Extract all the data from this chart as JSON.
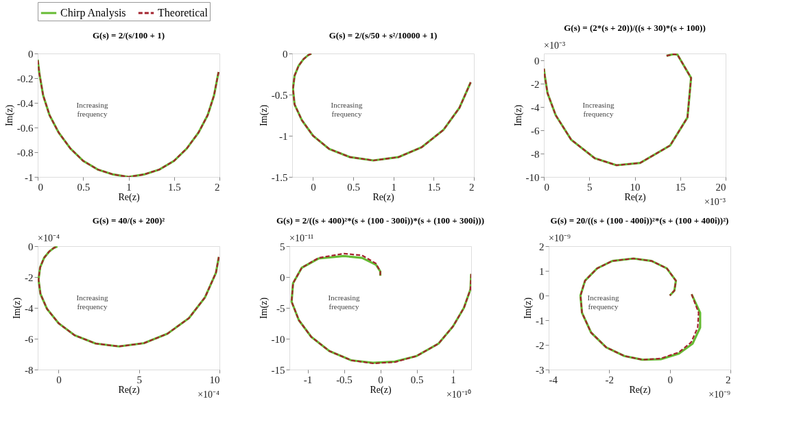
{
  "chart_data": [
    {
      "type": "line",
      "title": "G(s) = 2/(s/100 + 1)",
      "xlabel": "Re(z)",
      "ylabel": "Im(z)",
      "xlim": [
        0,
        2
      ],
      "ylim": [
        -1,
        0
      ],
      "xticks": [
        0,
        0.5,
        1,
        1.5,
        2
      ],
      "yticks": [
        0,
        -0.2,
        -0.4,
        -0.6,
        -0.8,
        -1
      ],
      "grid": false,
      "legend": false,
      "annotations": [
        "Increasing frequency"
      ],
      "series": [
        {
          "color": "#66bb33",
          "line_style": "solid",
          "x": [
            1.99,
            1.94,
            1.87,
            1.77,
            1.64,
            1.5,
            1.34,
            1.17,
            1,
            0.83,
            0.66,
            0.5,
            0.36,
            0.23,
            0.13,
            0.06,
            0.02,
            0.0
          ],
          "values": [
            -0.15,
            -0.34,
            -0.5,
            -0.64,
            -0.77,
            -0.87,
            -0.94,
            -0.98,
            -1,
            -0.98,
            -0.94,
            -0.87,
            -0.77,
            -0.64,
            -0.5,
            -0.34,
            -0.17,
            -0.05
          ]
        },
        {
          "color": "#a3232f",
          "line_style": "dashed",
          "x": [
            1.99,
            1.94,
            1.87,
            1.77,
            1.64,
            1.5,
            1.34,
            1.17,
            1,
            0.83,
            0.66,
            0.5,
            0.36,
            0.23,
            0.13,
            0.06,
            0.02,
            0.0
          ],
          "values": [
            -0.15,
            -0.34,
            -0.5,
            -0.64,
            -0.77,
            -0.87,
            -0.94,
            -0.98,
            -1,
            -0.98,
            -0.94,
            -0.87,
            -0.77,
            -0.64,
            -0.5,
            -0.34,
            -0.17,
            -0.05
          ]
        }
      ]
    },
    {
      "type": "line",
      "title": "G(s) = 2/(s/50 + s²/10000 + 1)",
      "xlabel": "Re(z)",
      "ylabel": "Im(z)",
      "xlim": [
        -0.26,
        2
      ],
      "ylim": [
        -1.5,
        0
      ],
      "xticks": [
        0,
        0.5,
        1,
        1.5,
        2
      ],
      "yticks": [
        0,
        -0.5,
        -1,
        -1.5
      ],
      "grid": false,
      "legend": "top",
      "annotations": [
        "Increasing frequency"
      ],
      "series": [
        {
          "name": "Chirp Analysis",
          "color": "#66bb33",
          "line_style": "solid",
          "x": [
            1.96,
            1.82,
            1.62,
            1.35,
            1.06,
            0.75,
            0.46,
            0.2,
            0,
            -0.14,
            -0.23,
            -0.25,
            -0.23,
            -0.18,
            -0.12,
            -0.06,
            -0.02
          ],
          "values": [
            -0.35,
            -0.66,
            -0.93,
            -1.14,
            -1.26,
            -1.3,
            -1.26,
            -1.16,
            -1,
            -0.81,
            -0.62,
            -0.43,
            -0.27,
            -0.15,
            -0.07,
            -0.02,
            0
          ]
        },
        {
          "name": "Theoretical",
          "color": "#a3232f",
          "line_style": "dashed",
          "x": [
            1.96,
            1.82,
            1.62,
            1.35,
            1.06,
            0.75,
            0.46,
            0.2,
            0,
            -0.14,
            -0.23,
            -0.25,
            -0.23,
            -0.18,
            -0.12,
            -0.06,
            -0.02
          ],
          "values": [
            -0.35,
            -0.66,
            -0.93,
            -1.14,
            -1.26,
            -1.3,
            -1.26,
            -1.16,
            -1,
            -0.81,
            -0.62,
            -0.43,
            -0.27,
            -0.15,
            -0.07,
            -0.02,
            0
          ]
        }
      ]
    },
    {
      "type": "line",
      "title": "G(s) = (2*(s + 20))/((s + 30)*(s + 100))",
      "xlabel": "Re(z)",
      "ylabel": "Im(z)",
      "xlim": [
        0,
        20
      ],
      "ylim": [
        -10,
        0.6
      ],
      "xticks": [
        0,
        5,
        10,
        15,
        20
      ],
      "yticks": [
        0,
        -2,
        -4,
        -6,
        -8,
        -10
      ],
      "grid": false,
      "legend": false,
      "annotations": [
        "Increasing frequency",
        "×10⁻³",
        "×10⁻³"
      ],
      "series": [
        {
          "color": "#66bb33",
          "line_style": "solid",
          "x": [
            13.5,
            14.3,
            14.7,
            16.2,
            15.8,
            13.9,
            10.6,
            8.0,
            5.6,
            3.0,
            1.3,
            0.4,
            0.1,
            0.0
          ],
          "values": [
            0.4,
            0.55,
            0.5,
            -1.5,
            -4.9,
            -7.3,
            -8.8,
            -9.0,
            -8.4,
            -6.8,
            -4.7,
            -2.8,
            -1.3,
            -0.7
          ]
        },
        {
          "color": "#a3232f",
          "line_style": "dashed",
          "x": [
            13.5,
            14.3,
            14.7,
            16.2,
            15.8,
            13.9,
            10.6,
            8.0,
            5.6,
            3.0,
            1.3,
            0.4,
            0.1,
            0.0
          ],
          "values": [
            0.4,
            0.55,
            0.5,
            -1.5,
            -4.9,
            -7.3,
            -8.8,
            -9.0,
            -8.4,
            -6.8,
            -4.7,
            -2.8,
            -1.3,
            -0.7
          ]
        }
      ]
    },
    {
      "type": "line",
      "title": "G(s) = 40/(s + 200)²",
      "xlabel": "Re(z)",
      "ylabel": "Im(z)",
      "xlim": [
        -1.3,
        10
      ],
      "ylim": [
        -8,
        0
      ],
      "xticks": [
        0,
        5,
        10
      ],
      "yticks": [
        0,
        -2,
        -4,
        -6,
        -8
      ],
      "grid": false,
      "legend": false,
      "annotations": [
        "Increasing frequency",
        "×10⁻⁴",
        "×10⁻⁴"
      ],
      "series": [
        {
          "color": "#66bb33",
          "line_style": "solid",
          "x": [
            9.96,
            9.78,
            9.1,
            8.1,
            6.76,
            5.3,
            3.75,
            2.3,
            1.0,
            0,
            -0.72,
            -1.13,
            -1.25,
            -1.15,
            -0.9,
            -0.58,
            -0.29,
            -0.08
          ],
          "values": [
            -0.7,
            -1.73,
            -3.32,
            -4.67,
            -5.68,
            -6.29,
            -6.5,
            -6.31,
            -5.78,
            -5,
            -4.07,
            -3.1,
            -2.17,
            -1.37,
            -0.75,
            -0.34,
            -0.11,
            -0.02
          ]
        },
        {
          "color": "#a3232f",
          "line_style": "dashed",
          "x": [
            9.96,
            9.78,
            9.1,
            8.1,
            6.76,
            5.3,
            3.75,
            2.3,
            1.0,
            0,
            -0.72,
            -1.13,
            -1.25,
            -1.15,
            -0.9,
            -0.58,
            -0.29,
            -0.08
          ],
          "values": [
            -0.7,
            -1.73,
            -3.32,
            -4.67,
            -5.68,
            -6.29,
            -6.5,
            -6.31,
            -5.78,
            -5,
            -4.07,
            -3.1,
            -2.17,
            -1.37,
            -0.75,
            -0.34,
            -0.11,
            -0.02
          ]
        }
      ]
    },
    {
      "type": "line",
      "title": "G(s) = 2/((s + 400)²*(s + (100 - 300i))*(s + (100 + 300i)))",
      "xlabel": "Re(z)",
      "ylabel": "Im(z)",
      "xlim": [
        -1.25,
        1.25
      ],
      "ylim": [
        -15,
        5
      ],
      "xticks": [
        -1,
        -0.5,
        0,
        0.5,
        1
      ],
      "yticks": [
        5,
        0,
        -5,
        -10,
        -15
      ],
      "grid": false,
      "legend": false,
      "annotations": [
        "Increasing frequency",
        "×10⁻¹¹",
        "×10⁻¹⁰"
      ],
      "series": [
        {
          "color": "#66bb33",
          "line_style": "solid",
          "x": [
            1.25,
            1.24,
            1.15,
            1.0,
            0.8,
            0.5,
            0.2,
            -0.1,
            -0.4,
            -0.7,
            -0.95,
            -1.12,
            -1.22,
            -1.2,
            -1.08,
            -0.85,
            -0.5,
            -0.25,
            -0.06,
            0.0,
            0.0
          ],
          "values": [
            0.5,
            -2,
            -5,
            -8,
            -10.8,
            -12.8,
            -13.7,
            -13.9,
            -13.5,
            -12,
            -9.7,
            -7,
            -4,
            -1,
            1.5,
            3.0,
            3.4,
            3.1,
            2.0,
            0.9,
            0.2
          ]
        },
        {
          "color": "#a3232f",
          "line_style": "dashed",
          "x": [
            1.25,
            1.24,
            1.15,
            1.0,
            0.8,
            0.5,
            0.2,
            -0.1,
            -0.4,
            -0.7,
            -0.95,
            -1.12,
            -1.22,
            -1.2,
            -1.08,
            -0.85,
            -0.5,
            -0.25,
            -0.06,
            0.0,
            0.0
          ],
          "values": [
            0.5,
            -2,
            -5,
            -8,
            -10.8,
            -12.8,
            -13.8,
            -14,
            -13.5,
            -12,
            -9.7,
            -7,
            -4,
            -1,
            1.5,
            3.1,
            3.8,
            3.5,
            2.2,
            0.9,
            0.2
          ]
        }
      ]
    },
    {
      "type": "line",
      "title": "G(s) = 20/((s + (100 - 400i))²*(s + (100 + 400i))²)",
      "xlabel": "Re(z)",
      "ylabel": "Im(z)",
      "xlim": [
        -4,
        2
      ],
      "ylim": [
        -3,
        2
      ],
      "xticks": [
        -4,
        -2,
        0,
        2
      ],
      "yticks": [
        2,
        1,
        0,
        -1,
        -2,
        -3
      ],
      "grid": false,
      "legend": false,
      "annotations": [
        "Increasing frequency",
        "×10⁻⁹",
        "×10⁻⁹"
      ],
      "series": [
        {
          "color": "#66bb33",
          "line_style": "solid",
          "x": [
            0.72,
            1.0,
            1.0,
            0.75,
            0.3,
            -0.3,
            -0.9,
            -1.5,
            -2.1,
            -2.6,
            -2.9,
            -2.95,
            -2.8,
            -2.4,
            -1.9,
            -1.2,
            -0.6,
            -0.1,
            0.2,
            0.15,
            0.0
          ],
          "values": [
            0.05,
            -0.7,
            -1.3,
            -1.95,
            -2.35,
            -2.58,
            -2.6,
            -2.45,
            -2.1,
            -1.5,
            -0.7,
            0,
            0.6,
            1.1,
            1.4,
            1.5,
            1.4,
            1.1,
            0.6,
            0.2,
            0.0
          ]
        },
        {
          "color": "#a3232f",
          "line_style": "dashed",
          "x": [
            0.72,
            0.95,
            0.92,
            0.7,
            0.3,
            -0.3,
            -0.9,
            -1.5,
            -2.1,
            -2.6,
            -2.9,
            -2.95,
            -2.8,
            -2.4,
            -1.9,
            -1.2,
            -0.6,
            -0.1,
            0.2,
            0.15,
            0.0
          ],
          "values": [
            0.05,
            -0.7,
            -1.3,
            -1.9,
            -2.3,
            -2.55,
            -2.6,
            -2.45,
            -2.1,
            -1.5,
            -0.7,
            0,
            0.6,
            1.1,
            1.4,
            1.5,
            1.4,
            1.1,
            0.6,
            0.2,
            0.0
          ]
        }
      ]
    }
  ]
}
